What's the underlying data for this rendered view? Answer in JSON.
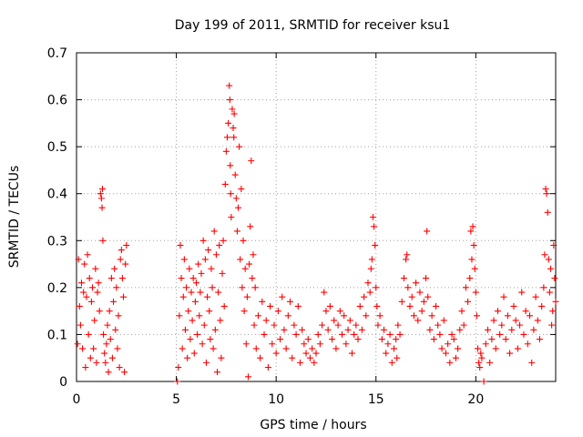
{
  "chart_data": {
    "type": "scatter",
    "title": "Day 199 of 2011, SRMTID for receiver ksu1",
    "xlabel": "GPS time / hours",
    "ylabel": "SRMTID / TECUs",
    "xlim": [
      0,
      24
    ],
    "ylim": [
      0,
      0.7
    ],
    "x_ticks": [
      0,
      5,
      10,
      15,
      20
    ],
    "x_tick_labels": [
      "0",
      "5",
      "10",
      "15",
      "20"
    ],
    "y_ticks": [
      0,
      0.1,
      0.2,
      0.3,
      0.4,
      0.5,
      0.6,
      0.7
    ],
    "y_tick_labels": [
      "0",
      "0.1",
      "0.2",
      "0.3",
      "0.4",
      "0.5",
      "0.6",
      "0.7"
    ],
    "grid": true,
    "marker": "plus",
    "color": "#ff0000",
    "series": [
      {
        "name": "ksu1",
        "points": [
          [
            0.05,
            0.08
          ],
          [
            0.1,
            0.26
          ],
          [
            0.15,
            0.16
          ],
          [
            0.2,
            0.12
          ],
          [
            0.25,
            0.21
          ],
          [
            0.3,
            0.07
          ],
          [
            0.35,
            0.19
          ],
          [
            0.4,
            0.25
          ],
          [
            0.45,
            0.03
          ],
          [
            0.5,
            0.18
          ],
          [
            0.55,
            0.27
          ],
          [
            0.6,
            0.1
          ],
          [
            0.65,
            0.22
          ],
          [
            0.7,
            0.05
          ],
          [
            0.75,
            0.17
          ],
          [
            0.8,
            0.2
          ],
          [
            0.85,
            0.07
          ],
          [
            0.9,
            0.13
          ],
          [
            0.95,
            0.24
          ],
          [
            1.0,
            0.04
          ],
          [
            1.05,
            0.19
          ],
          [
            1.1,
            0.21
          ],
          [
            1.15,
            0.15
          ],
          [
            1.2,
            0.4
          ],
          [
            1.25,
            0.39
          ],
          [
            1.28,
            0.37
          ],
          [
            1.3,
            0.41
          ],
          [
            1.32,
            0.3
          ],
          [
            1.35,
            0.1
          ],
          [
            1.4,
            0.06
          ],
          [
            1.45,
            0.04
          ],
          [
            1.5,
            0.08
          ],
          [
            1.55,
            0.12
          ],
          [
            1.6,
            0.02
          ],
          [
            1.65,
            0.15
          ],
          [
            1.7,
            0.09
          ],
          [
            1.75,
            0.22
          ],
          [
            1.8,
            0.05
          ],
          [
            1.85,
            0.17
          ],
          [
            1.9,
            0.24
          ],
          [
            1.95,
            0.11
          ],
          [
            2.0,
            0.2
          ],
          [
            2.05,
            0.07
          ],
          [
            2.1,
            0.14
          ],
          [
            2.15,
            0.03
          ],
          [
            2.2,
            0.26
          ],
          [
            2.25,
            0.28
          ],
          [
            2.3,
            0.22
          ],
          [
            2.35,
            0.18
          ],
          [
            2.4,
            0.02
          ],
          [
            2.45,
            0.25
          ],
          [
            2.5,
            0.29
          ],
          [
            5.05,
            0.0
          ],
          [
            5.1,
            0.03
          ],
          [
            5.15,
            0.14
          ],
          [
            5.2,
            0.29
          ],
          [
            5.25,
            0.22
          ],
          [
            5.3,
            0.07
          ],
          [
            5.35,
            0.18
          ],
          [
            5.4,
            0.26
          ],
          [
            5.45,
            0.11
          ],
          [
            5.5,
            0.2
          ],
          [
            5.55,
            0.05
          ],
          [
            5.6,
            0.15
          ],
          [
            5.65,
            0.24
          ],
          [
            5.7,
            0.09
          ],
          [
            5.75,
            0.19
          ],
          [
            5.8,
            0.13
          ],
          [
            5.85,
            0.22
          ],
          [
            5.9,
            0.06
          ],
          [
            5.95,
            0.17
          ],
          [
            6.0,
            0.21
          ],
          [
            6.05,
            0.1
          ],
          [
            6.1,
            0.25
          ],
          [
            6.15,
            0.14
          ],
          [
            6.2,
            0.19
          ],
          [
            6.25,
            0.23
          ],
          [
            6.3,
            0.08
          ],
          [
            6.35,
            0.3
          ],
          [
            6.4,
            0.12
          ],
          [
            6.45,
            0.26
          ],
          [
            6.5,
            0.04
          ],
          [
            6.55,
            0.18
          ],
          [
            6.6,
            0.28
          ],
          [
            6.65,
            0.15
          ],
          [
            6.7,
            0.09
          ],
          [
            6.75,
            0.24
          ],
          [
            6.8,
            0.2
          ],
          [
            6.85,
            0.07
          ],
          [
            6.9,
            0.32
          ],
          [
            6.95,
            0.11
          ],
          [
            7.0,
            0.27
          ],
          [
            7.05,
            0.02
          ],
          [
            7.1,
            0.19
          ],
          [
            7.15,
            0.29
          ],
          [
            7.2,
            0.13
          ],
          [
            7.25,
            0.05
          ],
          [
            7.3,
            0.23
          ],
          [
            7.35,
            0.3
          ],
          [
            7.4,
            0.16
          ],
          [
            7.45,
            0.42
          ],
          [
            7.5,
            0.49
          ],
          [
            7.55,
            0.52
          ],
          [
            7.6,
            0.55
          ],
          [
            7.65,
            0.63
          ],
          [
            7.68,
            0.6
          ],
          [
            7.7,
            0.46
          ],
          [
            7.72,
            0.4
          ],
          [
            7.75,
            0.35
          ],
          [
            7.8,
            0.58
          ],
          [
            7.85,
            0.54
          ],
          [
            7.88,
            0.52
          ],
          [
            7.9,
            0.57
          ],
          [
            7.95,
            0.44
          ],
          [
            8.0,
            0.39
          ],
          [
            8.05,
            0.32
          ],
          [
            8.1,
            0.37
          ],
          [
            8.15,
            0.5
          ],
          [
            8.2,
            0.26
          ],
          [
            8.25,
            0.41
          ],
          [
            8.3,
            0.2
          ],
          [
            8.35,
            0.3
          ],
          [
            8.4,
            0.15
          ],
          [
            8.45,
            0.24
          ],
          [
            8.5,
            0.08
          ],
          [
            8.55,
            0.18
          ],
          [
            8.6,
            0.01
          ],
          [
            8.65,
            0.25
          ],
          [
            8.7,
            0.33
          ],
          [
            8.75,
            0.47
          ],
          [
            8.8,
            0.22
          ],
          [
            8.85,
            0.27
          ],
          [
            8.9,
            0.12
          ],
          [
            8.95,
            0.2
          ],
          [
            9.0,
            0.07
          ],
          [
            9.1,
            0.14
          ],
          [
            9.2,
            0.05
          ],
          [
            9.3,
            0.17
          ],
          [
            9.4,
            0.1
          ],
          [
            9.5,
            0.13
          ],
          [
            9.6,
            0.03
          ],
          [
            9.7,
            0.16
          ],
          [
            9.8,
            0.08
          ],
          [
            9.9,
            0.12
          ],
          [
            10.0,
            0.06
          ],
          [
            10.1,
            0.15
          ],
          [
            10.2,
            0.09
          ],
          [
            10.3,
            0.18
          ],
          [
            10.4,
            0.11
          ],
          [
            10.5,
            0.07
          ],
          [
            10.6,
            0.14
          ],
          [
            10.7,
            0.17
          ],
          [
            10.8,
            0.05
          ],
          [
            10.9,
            0.12
          ],
          [
            11.0,
            0.1
          ],
          [
            11.1,
            0.16
          ],
          [
            11.2,
            0.04
          ],
          [
            11.3,
            0.11
          ],
          [
            11.4,
            0.08
          ],
          [
            11.5,
            0.06
          ],
          [
            11.6,
            0.09
          ],
          [
            11.7,
            0.05
          ],
          [
            11.8,
            0.07
          ],
          [
            11.9,
            0.04
          ],
          [
            12.0,
            0.06
          ],
          [
            12.1,
            0.1
          ],
          [
            12.2,
            0.08
          ],
          [
            12.3,
            0.12
          ],
          [
            12.4,
            0.19
          ],
          [
            12.5,
            0.15
          ],
          [
            12.6,
            0.11
          ],
          [
            12.7,
            0.16
          ],
          [
            12.8,
            0.09
          ],
          [
            12.9,
            0.13
          ],
          [
            13.0,
            0.07
          ],
          [
            13.1,
            0.12
          ],
          [
            13.2,
            0.15
          ],
          [
            13.3,
            0.1
          ],
          [
            13.4,
            0.14
          ],
          [
            13.5,
            0.08
          ],
          [
            13.6,
            0.11
          ],
          [
            13.7,
            0.13
          ],
          [
            13.8,
            0.06
          ],
          [
            13.9,
            0.1
          ],
          [
            14.0,
            0.12
          ],
          [
            14.1,
            0.09
          ],
          [
            14.2,
            0.16
          ],
          [
            14.3,
            0.11
          ],
          [
            14.4,
            0.18
          ],
          [
            14.5,
            0.14
          ],
          [
            14.6,
            0.21
          ],
          [
            14.7,
            0.19
          ],
          [
            14.75,
            0.24
          ],
          [
            14.8,
            0.26
          ],
          [
            14.85,
            0.35
          ],
          [
            14.9,
            0.33
          ],
          [
            14.95,
            0.29
          ],
          [
            15.0,
            0.2
          ],
          [
            15.05,
            0.16
          ],
          [
            15.1,
            0.12
          ],
          [
            15.2,
            0.14
          ],
          [
            15.3,
            0.09
          ],
          [
            15.4,
            0.11
          ],
          [
            15.5,
            0.06
          ],
          [
            15.6,
            0.08
          ],
          [
            15.7,
            0.1
          ],
          [
            15.8,
            0.04
          ],
          [
            15.9,
            0.07
          ],
          [
            16.0,
            0.09
          ],
          [
            16.05,
            0.05
          ],
          [
            16.1,
            0.12
          ],
          [
            16.2,
            0.1
          ],
          [
            16.3,
            0.17
          ],
          [
            16.4,
            0.22
          ],
          [
            16.5,
            0.26
          ],
          [
            16.55,
            0.27
          ],
          [
            16.6,
            0.2
          ],
          [
            16.7,
            0.16
          ],
          [
            16.8,
            0.18
          ],
          [
            16.9,
            0.14
          ],
          [
            17.0,
            0.21
          ],
          [
            17.1,
            0.13
          ],
          [
            17.2,
            0.19
          ],
          [
            17.3,
            0.15
          ],
          [
            17.4,
            0.17
          ],
          [
            17.5,
            0.22
          ],
          [
            17.55,
            0.32
          ],
          [
            17.6,
            0.18
          ],
          [
            17.7,
            0.11
          ],
          [
            17.8,
            0.14
          ],
          [
            17.9,
            0.09
          ],
          [
            18.0,
            0.16
          ],
          [
            18.1,
            0.12
          ],
          [
            18.2,
            0.1
          ],
          [
            18.3,
            0.07
          ],
          [
            18.4,
            0.13
          ],
          [
            18.5,
            0.06
          ],
          [
            18.6,
            0.08
          ],
          [
            18.7,
            0.04
          ],
          [
            18.8,
            0.1
          ],
          [
            18.9,
            0.09
          ],
          [
            19.0,
            0.05
          ],
          [
            19.1,
            0.07
          ],
          [
            19.2,
            0.11
          ],
          [
            19.3,
            0.15
          ],
          [
            19.4,
            0.12
          ],
          [
            19.5,
            0.2
          ],
          [
            19.6,
            0.17
          ],
          [
            19.7,
            0.22
          ],
          [
            19.75,
            0.32
          ],
          [
            19.8,
            0.26
          ],
          [
            19.85,
            0.33
          ],
          [
            19.9,
            0.29
          ],
          [
            19.95,
            0.24
          ],
          [
            20.0,
            0.19
          ],
          [
            20.05,
            0.14
          ],
          [
            20.1,
            0.07
          ],
          [
            20.15,
            0.04
          ],
          [
            20.2,
            0.03
          ],
          [
            20.25,
            0.06
          ],
          [
            20.3,
            0.05
          ],
          [
            20.4,
            0.0
          ],
          [
            20.5,
            0.08
          ],
          [
            20.6,
            0.11
          ],
          [
            20.7,
            0.04
          ],
          [
            20.8,
            0.09
          ],
          [
            20.9,
            0.13
          ],
          [
            21.0,
            0.07
          ],
          [
            21.1,
            0.15
          ],
          [
            21.2,
            0.1
          ],
          [
            21.3,
            0.12
          ],
          [
            21.4,
            0.18
          ],
          [
            21.5,
            0.09
          ],
          [
            21.6,
            0.14
          ],
          [
            21.7,
            0.06
          ],
          [
            21.8,
            0.11
          ],
          [
            21.9,
            0.16
          ],
          [
            22.0,
            0.13
          ],
          [
            22.1,
            0.07
          ],
          [
            22.2,
            0.12
          ],
          [
            22.3,
            0.19
          ],
          [
            22.4,
            0.1
          ],
          [
            22.5,
            0.15
          ],
          [
            22.6,
            0.08
          ],
          [
            22.7,
            0.14
          ],
          [
            22.8,
            0.04
          ],
          [
            22.9,
            0.11
          ],
          [
            23.0,
            0.18
          ],
          [
            23.1,
            0.13
          ],
          [
            23.2,
            0.09
          ],
          [
            23.3,
            0.16
          ],
          [
            23.4,
            0.2
          ],
          [
            23.45,
            0.27
          ],
          [
            23.5,
            0.41
          ],
          [
            23.55,
            0.4
          ],
          [
            23.6,
            0.36
          ],
          [
            23.65,
            0.26
          ],
          [
            23.7,
            0.19
          ],
          [
            23.75,
            0.24
          ],
          [
            23.8,
            0.12
          ],
          [
            23.85,
            0.15
          ],
          [
            23.9,
            0.29
          ],
          [
            23.95,
            0.22
          ],
          [
            24.0,
            0.17
          ]
        ]
      }
    ]
  }
}
